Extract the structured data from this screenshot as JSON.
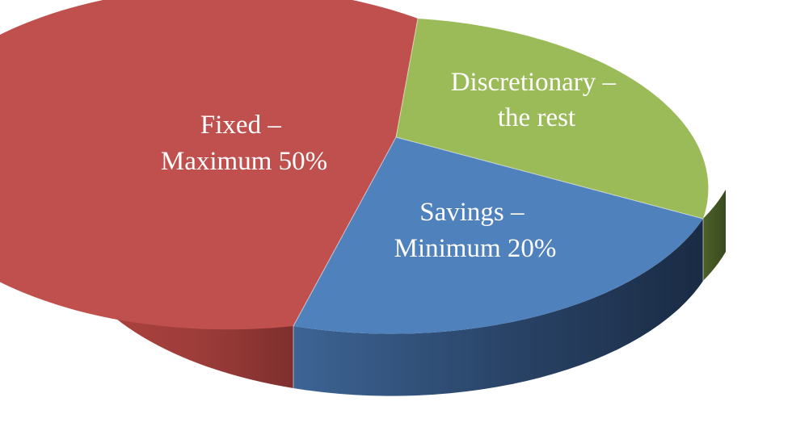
{
  "chart_data": {
    "type": "pie",
    "title": "",
    "slices": [
      {
        "name": "Fixed – Maximum 50%",
        "label_lines": [
          "Fixed –",
          "Maximum 50%"
        ],
        "value": 50,
        "color": "#c0504d",
        "side_color": "#8f3733"
      },
      {
        "name": "Discretionary – the rest",
        "label_lines": [
          "Discretionary –",
          "the rest"
        ],
        "value": 30,
        "color": "#9bbb59",
        "side_color": "#4d6129"
      },
      {
        "name": "Savings – Minimum 20%",
        "label_lines": [
          "Savings –",
          "Minimum 20%"
        ],
        "value": 20,
        "color": "#4f81bd",
        "side_color": "#1f3553"
      }
    ],
    "style": "3d"
  }
}
